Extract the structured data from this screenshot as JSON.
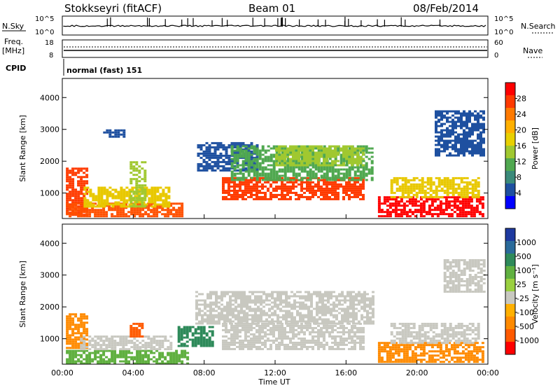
{
  "header": {
    "station": "Stokkseyri (fitACF)",
    "beam": "Beam 01",
    "date": "08/Feb/2014"
  },
  "noise_panel": {
    "left_label": "N.Sky",
    "right_label": "N.Search",
    "tick_top": "10^5",
    "tick_bottom": "10^0"
  },
  "freq_panel": {
    "left_label_1": "Freq.",
    "left_label_2": "[MHz]",
    "left_ticks": [
      "18",
      "8"
    ],
    "right_label": "Nave",
    "right_ticks": [
      "60",
      "0"
    ]
  },
  "cpid": {
    "label": "CPID",
    "value": "normal (fast) 151"
  },
  "chart_data": [
    {
      "type": "heatmap",
      "name": "power",
      "ylabel": "Slant Range [km]",
      "ylim": [
        200,
        4600
      ],
      "y_ticks": [
        "4000",
        "3000",
        "2000",
        "1000"
      ],
      "y_tick_values": [
        4000,
        3000,
        2000,
        1000
      ],
      "colorbar": {
        "label": "Power [dB]",
        "ticks": [
          "28",
          "24",
          "20",
          "16",
          "12",
          "8",
          "4"
        ],
        "colors": [
          "#ff0000",
          "#ff3a00",
          "#ff7a00",
          "#ffb000",
          "#e8d000",
          "#a0c830",
          "#50a850",
          "#3a8a7a",
          "#1e50a0",
          "#0000ff"
        ]
      },
      "regions": [
        {
          "t0": 0.2,
          "t1": 1.4,
          "r0": 300,
          "r1": 1800,
          "color": "#ff3a00"
        },
        {
          "t0": 0.2,
          "t1": 6.8,
          "r0": 300,
          "r1": 700,
          "color": "#ff5000"
        },
        {
          "t0": 1.2,
          "t1": 6.0,
          "r0": 600,
          "r1": 1200,
          "color": "#e8c800"
        },
        {
          "t0": 3.8,
          "t1": 4.6,
          "r0": 600,
          "r1": 2000,
          "color": "#a0c830"
        },
        {
          "t0": 7.6,
          "t1": 11.0,
          "r0": 1700,
          "r1": 2600,
          "color": "#1e50a0"
        },
        {
          "t0": 9.0,
          "t1": 17.0,
          "r0": 800,
          "r1": 1500,
          "color": "#ff3a00"
        },
        {
          "t0": 9.5,
          "t1": 17.5,
          "r0": 1400,
          "r1": 2500,
          "color": "#50a850"
        },
        {
          "t0": 12.0,
          "t1": 17.0,
          "r0": 1900,
          "r1": 2500,
          "color": "#a0c830"
        },
        {
          "t0": 17.8,
          "t1": 23.8,
          "r0": 250,
          "r1": 900,
          "color": "#ff0000"
        },
        {
          "t0": 18.5,
          "t1": 23.5,
          "r0": 900,
          "r1": 1500,
          "color": "#e8c800"
        },
        {
          "t0": 21.0,
          "t1": 23.8,
          "r0": 2200,
          "r1": 3600,
          "color": "#1e50a0"
        },
        {
          "t0": 2.3,
          "t1": 3.5,
          "r0": 2800,
          "r1": 3000,
          "color": "#1e50a0"
        }
      ]
    },
    {
      "type": "heatmap",
      "name": "velocity",
      "ylabel": "Slant Range [km]",
      "xlabel": "Time UT",
      "ylim": [
        200,
        4600
      ],
      "y_ticks": [
        "4000",
        "3000",
        "2000",
        "1000"
      ],
      "y_tick_values": [
        4000,
        3000,
        2000,
        1000
      ],
      "x_ticks": [
        "00:00",
        "04:00",
        "08:00",
        "12:00",
        "16:00",
        "20:00",
        "00:00"
      ],
      "x_tick_values": [
        0,
        4,
        8,
        12,
        16,
        20,
        24
      ],
      "colorbar": {
        "label": "Velocity [m s⁻¹]",
        "ticks": [
          "1000",
          "500",
          "100",
          "25",
          "-25",
          "-100",
          "-500",
          "-1000"
        ],
        "colors": [
          "#1e3aa0",
          "#2a6a9a",
          "#2e8a5a",
          "#60b040",
          "#9ad040",
          "#c8c8c0",
          "#ffb000",
          "#ff8a00",
          "#ff5a00",
          "#ff0000"
        ]
      },
      "regions": [
        {
          "t0": 0.2,
          "t1": 1.4,
          "r0": 700,
          "r1": 1800,
          "color": "#ff8a00"
        },
        {
          "t0": 0.2,
          "t1": 7.0,
          "r0": 250,
          "r1": 650,
          "color": "#60b040"
        },
        {
          "t0": 1.0,
          "t1": 6.2,
          "r0": 650,
          "r1": 1100,
          "color": "#c8c8c0"
        },
        {
          "t0": 6.5,
          "t1": 8.5,
          "r0": 800,
          "r1": 1400,
          "color": "#2e8a5a"
        },
        {
          "t0": 7.5,
          "t1": 17.5,
          "r0": 1500,
          "r1": 2500,
          "color": "#c8c8c0"
        },
        {
          "t0": 9.0,
          "t1": 17.0,
          "r0": 700,
          "r1": 1500,
          "color": "#c8c8c0"
        },
        {
          "t0": 17.8,
          "t1": 23.8,
          "r0": 250,
          "r1": 900,
          "color": "#ff8a00"
        },
        {
          "t0": 18.5,
          "t1": 23.5,
          "r0": 900,
          "r1": 1500,
          "color": "#c8c8c0"
        },
        {
          "t0": 21.5,
          "t1": 23.8,
          "r0": 2500,
          "r1": 3500,
          "color": "#c8c8c0"
        },
        {
          "t0": 3.8,
          "t1": 4.5,
          "r0": 1100,
          "r1": 1500,
          "color": "#ff5a00"
        }
      ]
    }
  ]
}
